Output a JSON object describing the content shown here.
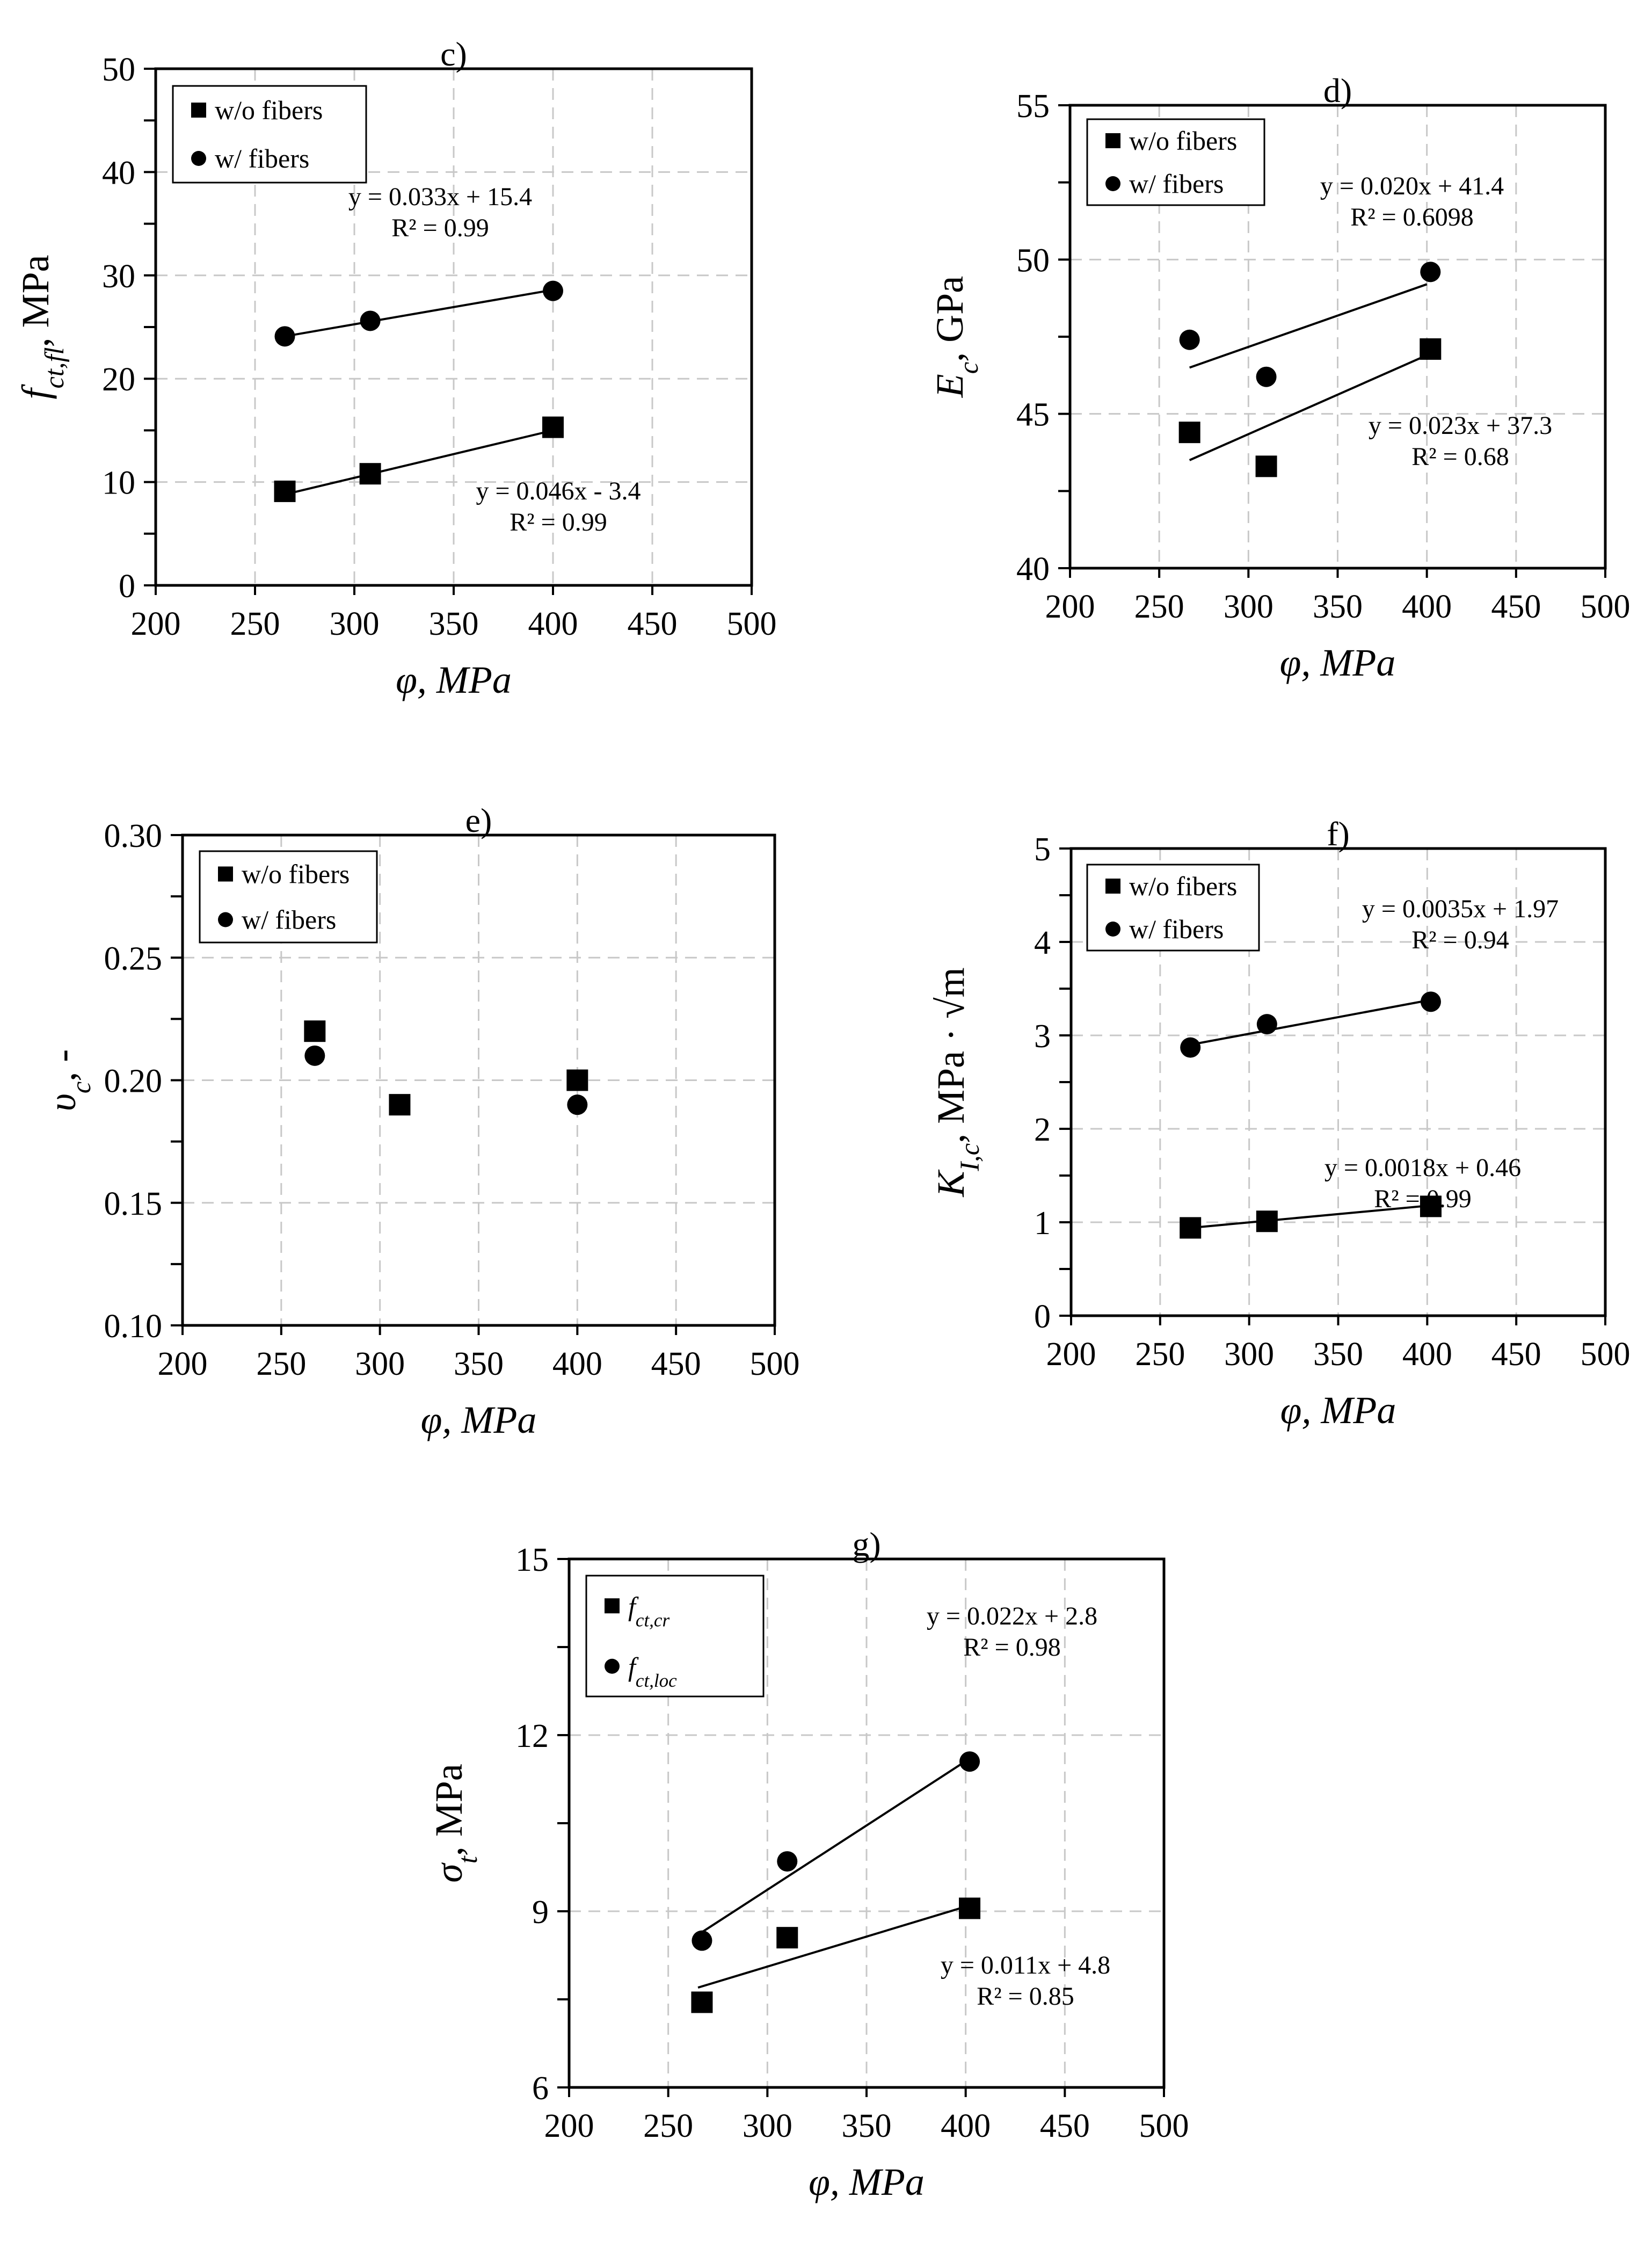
{
  "chart_data": [
    {
      "id": "c",
      "type": "scatter",
      "title": "c)",
      "xlabel": "φ, MPa",
      "ylabel": "f_ct,fl, MPa",
      "ylabel_parts": {
        "sym": "f",
        "sub": "ct,fl",
        "unit": ", MPa"
      },
      "xlim": [
        200,
        500
      ],
      "ylim": [
        0,
        50
      ],
      "xticks": [
        200,
        250,
        300,
        350,
        400,
        450,
        500
      ],
      "yticks": [
        0,
        10,
        20,
        30,
        40,
        50
      ],
      "grid": true,
      "legend_placement": "top-left",
      "series": [
        {
          "name": "w/o fibers",
          "marker": "square",
          "x": [
            265,
            308,
            400
          ],
          "y": [
            9.1,
            10.8,
            15.3
          ],
          "trend": {
            "x": [
              265,
              400
            ],
            "y": [
              8.8,
              15.0
            ]
          },
          "equation": "y = 0.046x - 3.4",
          "r2": "R² = 0.99",
          "eq_pos": "below-right"
        },
        {
          "name": "w/ fibers",
          "marker": "circle",
          "x": [
            265,
            308,
            400
          ],
          "y": [
            24.1,
            25.6,
            28.5
          ],
          "trend": {
            "x": [
              265,
              400
            ],
            "y": [
              24.1,
              28.6
            ]
          },
          "equation": "y = 0.033x + 15.4",
          "r2": "R² = 0.99",
          "eq_pos": "above"
        }
      ]
    },
    {
      "id": "d",
      "type": "scatter",
      "title": "d)",
      "xlabel": "φ, MPa",
      "ylabel": "E_c, GPa",
      "ylabel_parts": {
        "sym": "E",
        "sub": "c",
        "unit": ", GPa"
      },
      "xlim": [
        200,
        500
      ],
      "ylim": [
        40,
        55
      ],
      "xticks": [
        200,
        250,
        300,
        350,
        400,
        450,
        500
      ],
      "yticks": [
        40,
        45,
        50,
        55
      ],
      "grid": true,
      "legend_placement": "top-left",
      "series": [
        {
          "name": "w/o fibers",
          "marker": "square",
          "x": [
            267,
            310,
            402
          ],
          "y": [
            44.4,
            43.3,
            47.1
          ],
          "trend": {
            "x": [
              267,
              400
            ],
            "y": [
              43.5,
              46.9
            ]
          },
          "equation": "y = 0.023x + 37.3",
          "r2": "R² = 0.68",
          "eq_pos": "below-right"
        },
        {
          "name": "w/ fibers",
          "marker": "circle",
          "x": [
            267,
            310,
            402
          ],
          "y": [
            47.4,
            46.2,
            49.6
          ],
          "trend": {
            "x": [
              267,
              400
            ],
            "y": [
              46.5,
              49.2
            ]
          },
          "equation": "y = 0.020x + 41.4",
          "r2": "R² = 0.6098",
          "eq_pos": "above"
        }
      ]
    },
    {
      "id": "e",
      "type": "scatter",
      "title": "e)",
      "xlabel": "φ, MPa",
      "ylabel": "υ_c, -",
      "ylabel_parts": {
        "sym": "υ",
        "sub": "c",
        "unit": ", -"
      },
      "xlim": [
        200,
        500
      ],
      "ylim": [
        0.1,
        0.3
      ],
      "xticks": [
        200,
        250,
        300,
        350,
        400,
        450,
        500
      ],
      "yticks": [
        0.1,
        0.15,
        0.2,
        0.25,
        0.3
      ],
      "ytick_labels": [
        "0.10",
        "0.15",
        "0.20",
        "0.25",
        "0.30"
      ],
      "grid": true,
      "legend_placement": "top-left",
      "series": [
        {
          "name": "w/o fibers",
          "marker": "square",
          "x": [
            267,
            310,
            400
          ],
          "y": [
            0.22,
            0.19,
            0.2
          ]
        },
        {
          "name": "w/ fibers",
          "marker": "circle",
          "x": [
            267,
            400
          ],
          "y": [
            0.21,
            0.19
          ]
        }
      ]
    },
    {
      "id": "f",
      "type": "scatter",
      "title": "f)",
      "xlabel": "φ, MPa",
      "ylabel": "K_I,c, MPa · √m",
      "ylabel_parts": {
        "sym": "K",
        "sub": "I,c",
        "unit": ", MPa · √m"
      },
      "xlim": [
        200,
        500
      ],
      "ylim": [
        0,
        5
      ],
      "xticks": [
        200,
        250,
        300,
        350,
        400,
        450,
        500
      ],
      "yticks": [
        0,
        1,
        2,
        3,
        4,
        5
      ],
      "grid": true,
      "legend_placement": "top-left",
      "series": [
        {
          "name": "w/o fibers",
          "marker": "square",
          "x": [
            267,
            310,
            402
          ],
          "y": [
            0.94,
            1.01,
            1.17
          ],
          "trend": {
            "x": [
              267,
              402
            ],
            "y": [
              0.94,
              1.18
            ]
          },
          "equation": "y = 0.0018x + 0.46",
          "r2": "R² = 0.99",
          "eq_pos": "above"
        },
        {
          "name": "w/ fibers",
          "marker": "circle",
          "x": [
            267,
            310,
            402
          ],
          "y": [
            2.87,
            3.12,
            3.36
          ],
          "trend": {
            "x": [
              267,
              402
            ],
            "y": [
              2.9,
              3.38
            ]
          },
          "equation": "y = 0.0035x + 1.97",
          "r2": "R² = 0.94",
          "eq_pos": "above"
        }
      ]
    },
    {
      "id": "g",
      "type": "scatter",
      "title": "g)",
      "xlabel": "φ, MPa",
      "ylabel": "σ_t, MPa",
      "ylabel_parts": {
        "sym": "σ",
        "sub": "t",
        "unit": ", MPa"
      },
      "xlim": [
        200,
        500
      ],
      "ylim": [
        6,
        15
      ],
      "xticks": [
        200,
        250,
        300,
        350,
        400,
        450,
        500
      ],
      "yticks": [
        6,
        9,
        12,
        15
      ],
      "grid": true,
      "legend_placement": "top-left",
      "series": [
        {
          "name": "f_ct,cr",
          "name_parts": {
            "sym": "f",
            "sub": "ct,cr"
          },
          "marker": "square",
          "x": [
            267,
            310,
            402
          ],
          "y": [
            7.45,
            8.55,
            9.05
          ],
          "trend": {
            "x": [
              265,
              402
            ],
            "y": [
              7.7,
              9.1
            ]
          },
          "equation": "y = 0.011x + 4.8",
          "r2": "R² = 0.85",
          "eq_pos": "below-right"
        },
        {
          "name": "f_ct,loc",
          "name_parts": {
            "sym": "f",
            "sub": "ct,loc"
          },
          "marker": "circle",
          "x": [
            267,
            310,
            402
          ],
          "y": [
            8.5,
            9.85,
            11.55
          ],
          "trend": {
            "x": [
              265,
              402
            ],
            "y": [
              8.6,
              11.6
            ]
          },
          "equation": "y = 0.022x + 2.8",
          "r2": "R² = 0.98",
          "eq_pos": "above"
        }
      ]
    }
  ]
}
